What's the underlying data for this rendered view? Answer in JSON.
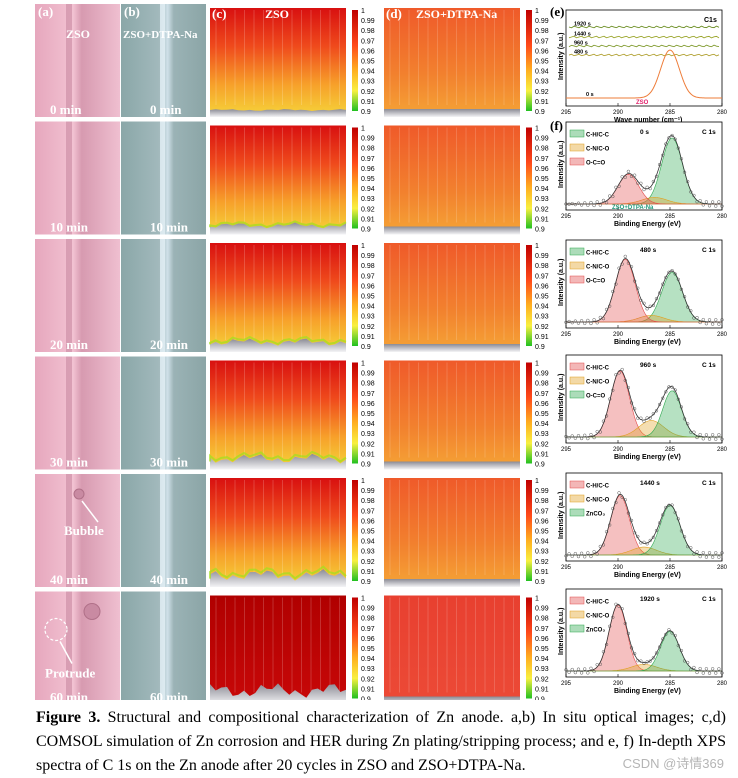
{
  "panel_letters": {
    "a": "(a)",
    "b": "(b)",
    "c": "(c)",
    "d": "(d)",
    "e": "(e)",
    "f": "(f)"
  },
  "column_titles": {
    "a": "ZSO",
    "b": "ZSO+DTPA-Na",
    "c": "ZSO",
    "d": "ZSO+DTPA-Na"
  },
  "rows": [
    {
      "time_a": "0 min",
      "time_b": "0 min"
    },
    {
      "time_a": "10 min",
      "time_b": "10 min"
    },
    {
      "time_a": "20 min",
      "time_b": "20 min"
    },
    {
      "time_a": "30 min",
      "time_b": "30 min"
    },
    {
      "time_a": "40 min",
      "time_b": "40 min"
    },
    {
      "time_a": "60 min",
      "time_b": "60 min"
    }
  ],
  "annotations": {
    "bubble": "Bubble",
    "protrude": "Protrude"
  },
  "colorbar": {
    "ticks": [
      "1",
      "0.99",
      "0.98",
      "0.97",
      "0.96",
      "0.95",
      "0.94",
      "0.93",
      "0.92",
      "0.91",
      "0.9"
    ]
  },
  "chart_data": [
    {
      "type": "line",
      "panel": "e",
      "title": "C1s",
      "xlabel": "Wave number (cm⁻¹)",
      "ylabel": "Intensity (a.u.)",
      "xlim": [
        295,
        280
      ],
      "ticks": [
        "295",
        "290",
        "285",
        "280"
      ],
      "series": [
        {
          "name": "1920 s",
          "shape": "flat",
          "color": "#6b8e23"
        },
        {
          "name": "1440 s",
          "shape": "flat",
          "color": "#9aa52a"
        },
        {
          "name": "960 s",
          "shape": "flat",
          "color": "#7f9a2c"
        },
        {
          "name": "480 s",
          "shape": "flat",
          "color": "#b0a030"
        },
        {
          "name": "0 s",
          "shape": "peak",
          "peak_x": 285,
          "color": "#ee7d3a",
          "legend": "ZSO"
        }
      ]
    },
    {
      "type": "line",
      "panel": "f",
      "xlabel": "Binding Energy (eV)",
      "ylabel": "Intensity (a.u.)",
      "xlim": [
        295,
        280
      ],
      "ticks": [
        "295",
        "290",
        "285",
        "280"
      ],
      "spectra": [
        {
          "time": "0 s",
          "element": "C 1s",
          "note": "ZSO+DTPA-Na",
          "peaks": [
            {
              "label": "C-H/C-C",
              "center": 284.8,
              "height": 1.0,
              "width": 1.0,
              "color": "#2fa84f"
            },
            {
              "label": "C-N/C-O",
              "center": 286.5,
              "height": 0.1,
              "width": 1.2,
              "color": "#e0a020"
            },
            {
              "label": "O-C=O",
              "center": 289.0,
              "height": 0.45,
              "width": 1.0,
              "color": "#e24a4a"
            }
          ]
        },
        {
          "time": "480 s",
          "element": "C 1s",
          "peaks": [
            {
              "label": "C-H/C-C",
              "center": 284.8,
              "height": 0.75,
              "width": 1.0,
              "color": "#2fa84f"
            },
            {
              "label": "C-N/C-O",
              "center": 286.8,
              "height": 0.1,
              "width": 1.2,
              "color": "#e0a020"
            },
            {
              "label": "O-C=O",
              "center": 289.3,
              "height": 0.95,
              "width": 0.95,
              "color": "#e24a4a"
            }
          ]
        },
        {
          "time": "960 s",
          "element": "C 1s",
          "peaks": [
            {
              "label": "C-H/C-C",
              "center": 289.8,
              "height": 1.0,
              "width": 0.9,
              "color": "#e24a4a"
            },
            {
              "label": "C-N/C-O",
              "center": 286.8,
              "height": 0.25,
              "width": 1.2,
              "color": "#e0a020"
            },
            {
              "label": "O-C=O",
              "center": 284.8,
              "height": 0.7,
              "width": 0.9,
              "color": "#2fa84f"
            }
          ]
        },
        {
          "time": "1440 s",
          "element": "C 1s",
          "peaks": [
            {
              "label": "C-H/C-C",
              "center": 289.8,
              "height": 0.9,
              "width": 0.9,
              "color": "#e24a4a"
            },
            {
              "label": "C-N/C-O",
              "center": 287.5,
              "height": 0.12,
              "width": 1.2,
              "color": "#e0a020"
            },
            {
              "label": "ZnCO₃",
              "center": 285.0,
              "height": 0.75,
              "width": 0.95,
              "color": "#2fa84f"
            }
          ]
        },
        {
          "time": "1920 s",
          "element": "C 1s",
          "peaks": [
            {
              "label": "C-H/C-C",
              "center": 290.0,
              "height": 1.0,
              "width": 0.85,
              "color": "#e24a4a"
            },
            {
              "label": "C-N/C-O",
              "center": 287.5,
              "height": 0.1,
              "width": 1.2,
              "color": "#e0a020"
            },
            {
              "label": "ZnCO₃",
              "center": 285.0,
              "height": 0.6,
              "width": 0.9,
              "color": "#2fa84f"
            }
          ]
        }
      ]
    }
  ],
  "caption": {
    "label": "Figure 3.",
    "text": " Structural and compositional characterization of Zn anode. a,b) In situ optical images; c,d) COMSOL simulation of Zn corrosion and HER during Zn plating/stripping process; and e, f) In-depth XPS spectra of C 1s on the Zn anode after 20 cycles in ZSO and ZSO+DTPA-Na."
  },
  "watermark": "CSDN @诗情369"
}
